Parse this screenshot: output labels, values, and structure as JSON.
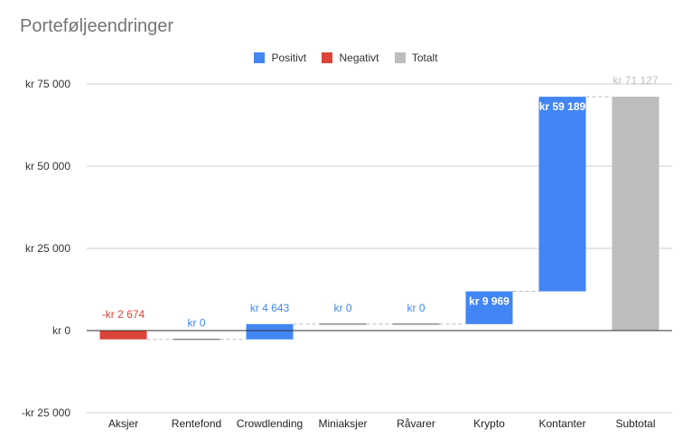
{
  "chart_data": {
    "type": "bar",
    "subtype": "waterfall",
    "title": "Porteføljeendringer",
    "xlabel": "",
    "ylabel": "",
    "ylim": [
      -25000,
      75000
    ],
    "y_ticks": [
      {
        "value": 75000,
        "label": "kr  75 000"
      },
      {
        "value": 50000,
        "label": "kr  50 000"
      },
      {
        "value": 25000,
        "label": "kr  25 000"
      },
      {
        "value": 0,
        "label": "kr  0"
      },
      {
        "value": -25000,
        "label": "-kr  25 000"
      }
    ],
    "legend": {
      "position": "top",
      "entries": [
        {
          "name": "Positivt",
          "color": "#4285f4"
        },
        {
          "name": "Negativt",
          "color": "#db4437"
        },
        {
          "name": "Totalt",
          "color": "#bdbdbd"
        }
      ]
    },
    "grid": true,
    "categories": [
      "Aksjer",
      "Rentefond",
      "Crowdlending",
      "Miniaksjer",
      "Råvarer",
      "Krypto",
      "Kontanter",
      "Subtotal"
    ],
    "values": [
      -2674,
      0,
      4643,
      0,
      0,
      9969,
      59189,
      71127
    ],
    "kinds": [
      "negative",
      "positive",
      "positive",
      "positive",
      "positive",
      "positive",
      "positive",
      "total"
    ],
    "value_labels": [
      "-kr  2 674",
      "kr  0",
      "kr  4 643",
      "kr  0",
      "kr  0",
      "kr  9 969",
      "kr  59 189",
      "kr  71 127"
    ],
    "colors": {
      "positive": "#4285f4",
      "negative": "#db4437",
      "total": "#bdbdbd",
      "zero": "#555555",
      "grid": "#cccccc",
      "axis": "#333333",
      "connector": "#bbbbbb"
    }
  }
}
